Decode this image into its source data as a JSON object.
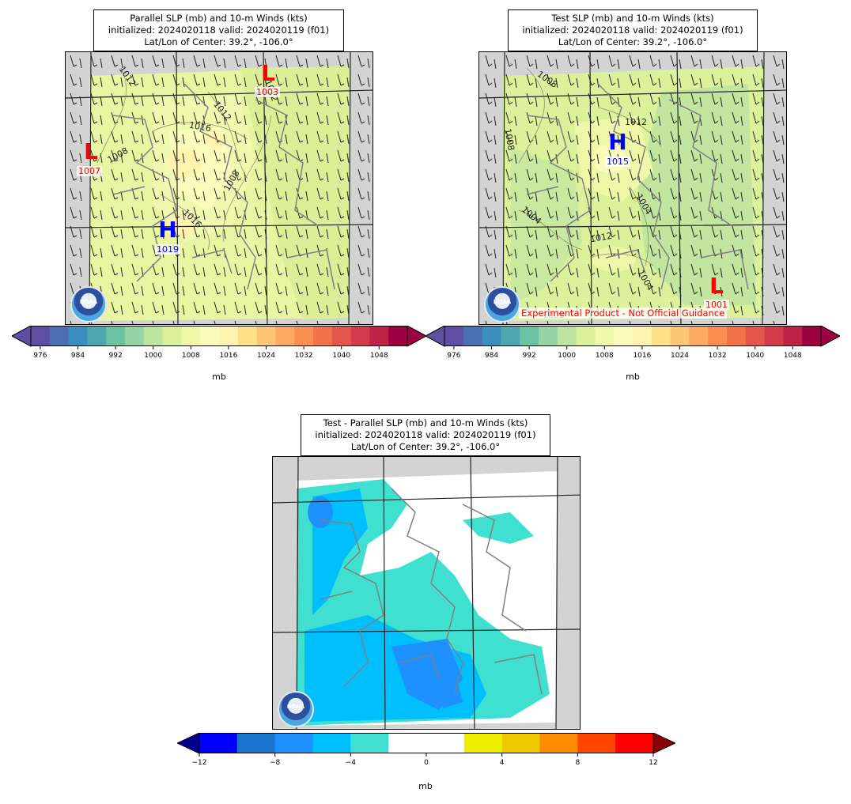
{
  "panels": [
    {
      "title_lines": [
        "Parallel SLP (mb) and 10-m Winds (kts)",
        "initialized: 2024020118 valid: 2024020119 (f01)",
        "Lat/Lon of Center: 39.2°, -106.0°"
      ],
      "highs": [
        {
          "letter": "H",
          "value": "1019"
        }
      ],
      "lows": [
        {
          "letter": "L",
          "value": "1007"
        },
        {
          "letter": "L",
          "value": "1003"
        }
      ],
      "contour_labels": [
        "1012",
        "1012",
        "1016",
        "1008",
        "1008",
        "1016",
        "1012"
      ]
    },
    {
      "title_lines": [
        "Test SLP (mb) and 10-m Winds (kts)",
        "initialized: 2024020118 valid: 2024020119 (f01)",
        "Lat/Lon of Center: 39.2°, -106.0°"
      ],
      "highs": [
        {
          "letter": "H",
          "value": "1015"
        }
      ],
      "lows": [
        {
          "letter": "L",
          "value": "1001"
        }
      ],
      "contour_labels": [
        "1008",
        "1012",
        "1008",
        "1004",
        "1004",
        "1012",
        "1004",
        "1008"
      ],
      "note": "Experimental Product - Not Official Guidance"
    },
    {
      "title_lines": [
        "Test - Parallel SLP (mb) and 10-m Winds (kts)",
        "initialized: 2024020118 valid: 2024020119 (f01)",
        "Lat/Lon of Center: 39.2°, -106.0°"
      ]
    }
  ],
  "colorbars": {
    "slp": {
      "ticks": [
        "976",
        "984",
        "992",
        "1000",
        "1008",
        "1016",
        "1024",
        "1032",
        "1040",
        "1048"
      ],
      "unit": "mb",
      "colors": [
        "#5e4fa2",
        "#4a70b2",
        "#3a8fbe",
        "#4fa8b1",
        "#6cc3a4",
        "#95d4a4",
        "#bde59f",
        "#dcf19b",
        "#eef8a8",
        "#fbfcbb",
        "#fff3b0",
        "#fee08b",
        "#fdc576",
        "#fdaa63",
        "#f98f52",
        "#f17347",
        "#e3574b",
        "#d33c4d",
        "#be2347",
        "#9e0142"
      ],
      "end_low": "#5e4fa2",
      "end_high": "#9e0142"
    },
    "diff": {
      "ticks": [
        "−12",
        "−8",
        "−4",
        "0",
        "4",
        "8",
        "12"
      ],
      "unit": "mb",
      "colors": [
        "#0000ff",
        "#1874cd",
        "#1e90ff",
        "#00bfff",
        "#40e0d0",
        "#ffffff",
        "#ffffff",
        "#eeee00",
        "#eec900",
        "#ff8c00",
        "#ff4500",
        "#ff0000"
      ],
      "end_low": "#00008b",
      "end_high": "#8b0000"
    }
  },
  "logo_text": "NOAA"
}
